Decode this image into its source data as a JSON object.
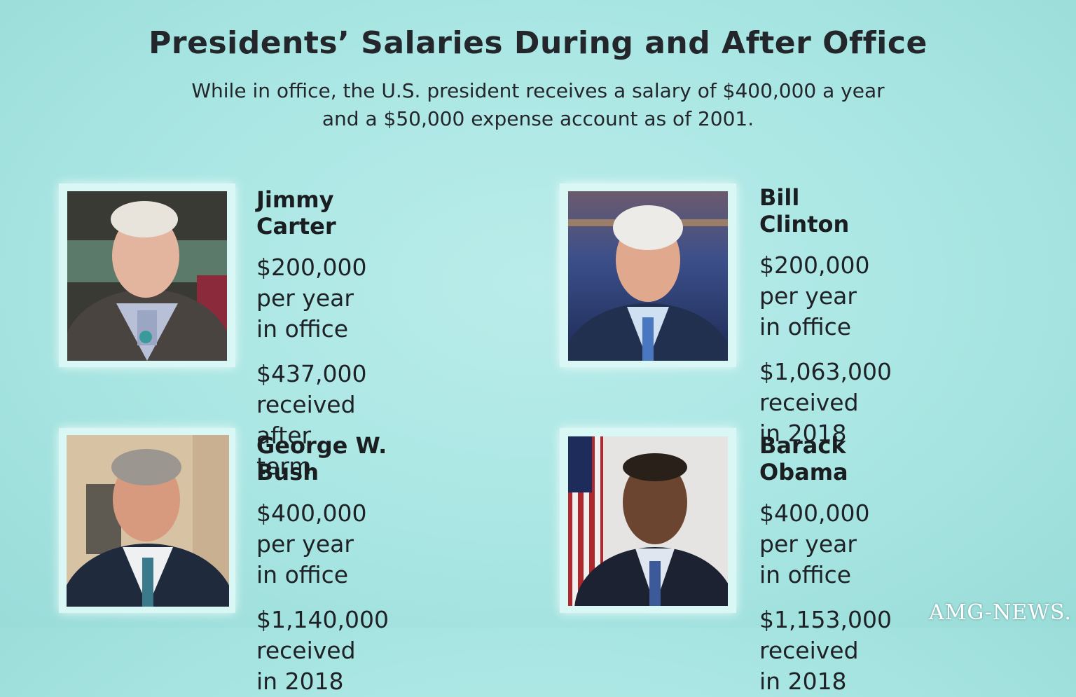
{
  "title": "Presidents’ Salaries During and After Office",
  "subtitle_line1": "While in office, the U.S. president receives a salary of $400,000 a year",
  "subtitle_line2": "and a $50,000 expense account as of 2001.",
  "presidents": [
    {
      "name": "Jimmy Carter",
      "in_office_line1": "$200,000 per year",
      "in_office_line2": "in office",
      "after_line1": "$437,000 received",
      "after_line2": "after term"
    },
    {
      "name": "Bill Clinton",
      "in_office_line1": "$200,000 per year",
      "in_office_line2": "in office",
      "after_line1": "$1,063,000 received",
      "after_line2": "in 2018"
    },
    {
      "name": "George W. Bush",
      "in_office_line1": "$400,000 per year",
      "in_office_line2": "in office",
      "after_line1": "$1,140,000 received",
      "after_line2": "in 2018"
    },
    {
      "name": "Barack Obama",
      "in_office_line1": "$400,000 per year",
      "in_office_line2": "in office",
      "after_line1": "$1,153,000 received",
      "after_line2": "in 2018"
    }
  ],
  "watermark": "AMG-NEWS."
}
